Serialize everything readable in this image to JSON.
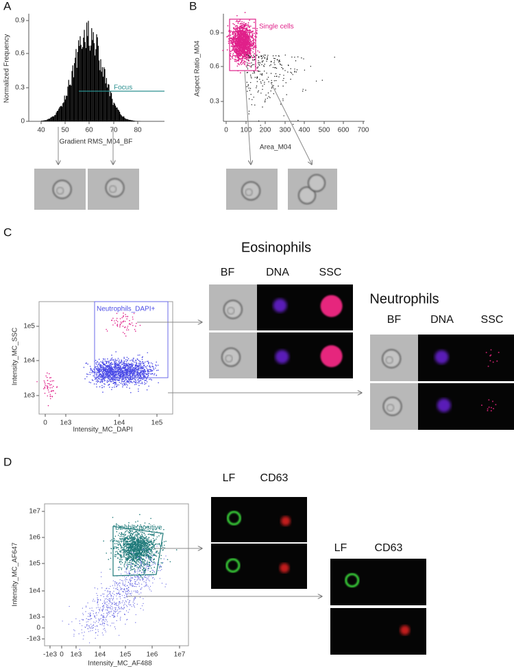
{
  "panels": [
    {
      "label": "A",
      "x_label": "Gradient RMS_M04_BF",
      "y_label": "Normalized Frequency",
      "x_ticks": [
        40,
        50,
        60,
        70,
        80
      ],
      "y_ticks": [
        0.9,
        0.6,
        0.3,
        0
      ],
      "gate": "Focus"
    },
    {
      "label": "B",
      "x_label": "Area_M04",
      "y_label": "Aspect Ratio_M04",
      "x_ticks": [
        0,
        100,
        200,
        300,
        400,
        500,
        600,
        700
      ],
      "y_ticks": [
        0.9,
        0.6,
        0.3
      ],
      "gate": "Single cells"
    },
    {
      "label": "C",
      "x_label": "Intensity_MC_DAPI",
      "y_label": "Intensity_MC_SSC",
      "x_ticks": [
        0,
        "1e3",
        "1e4",
        "1e5"
      ],
      "y_ticks": [
        "1e5",
        "1e4",
        "1e3"
      ],
      "gate": "Neutrophils_DAPI+",
      "groups": [
        {
          "title": "Eosinophils",
          "columns": [
            "BF",
            "DNA",
            "SSC"
          ]
        },
        {
          "title": "Neutrophils",
          "columns": [
            "BF",
            "DNA",
            "SSC"
          ]
        }
      ]
    },
    {
      "label": "D",
      "x_label": "Intensity_MC_AF488",
      "y_label": "Intensity_MC_AF647",
      "x_ticks": [
        "-1e3",
        0,
        "1e3",
        "1e4",
        "1e5",
        "1e6",
        "1e7"
      ],
      "y_ticks": [
        "1e7",
        "1e6",
        "1e5",
        "1e4",
        "1e3",
        0,
        "-1e3"
      ],
      "gate": "Double positive",
      "groups": [
        {
          "columns": [
            "LF",
            "CD63"
          ]
        },
        {
          "columns": [
            "LF",
            "CD63"
          ]
        }
      ]
    }
  ]
}
